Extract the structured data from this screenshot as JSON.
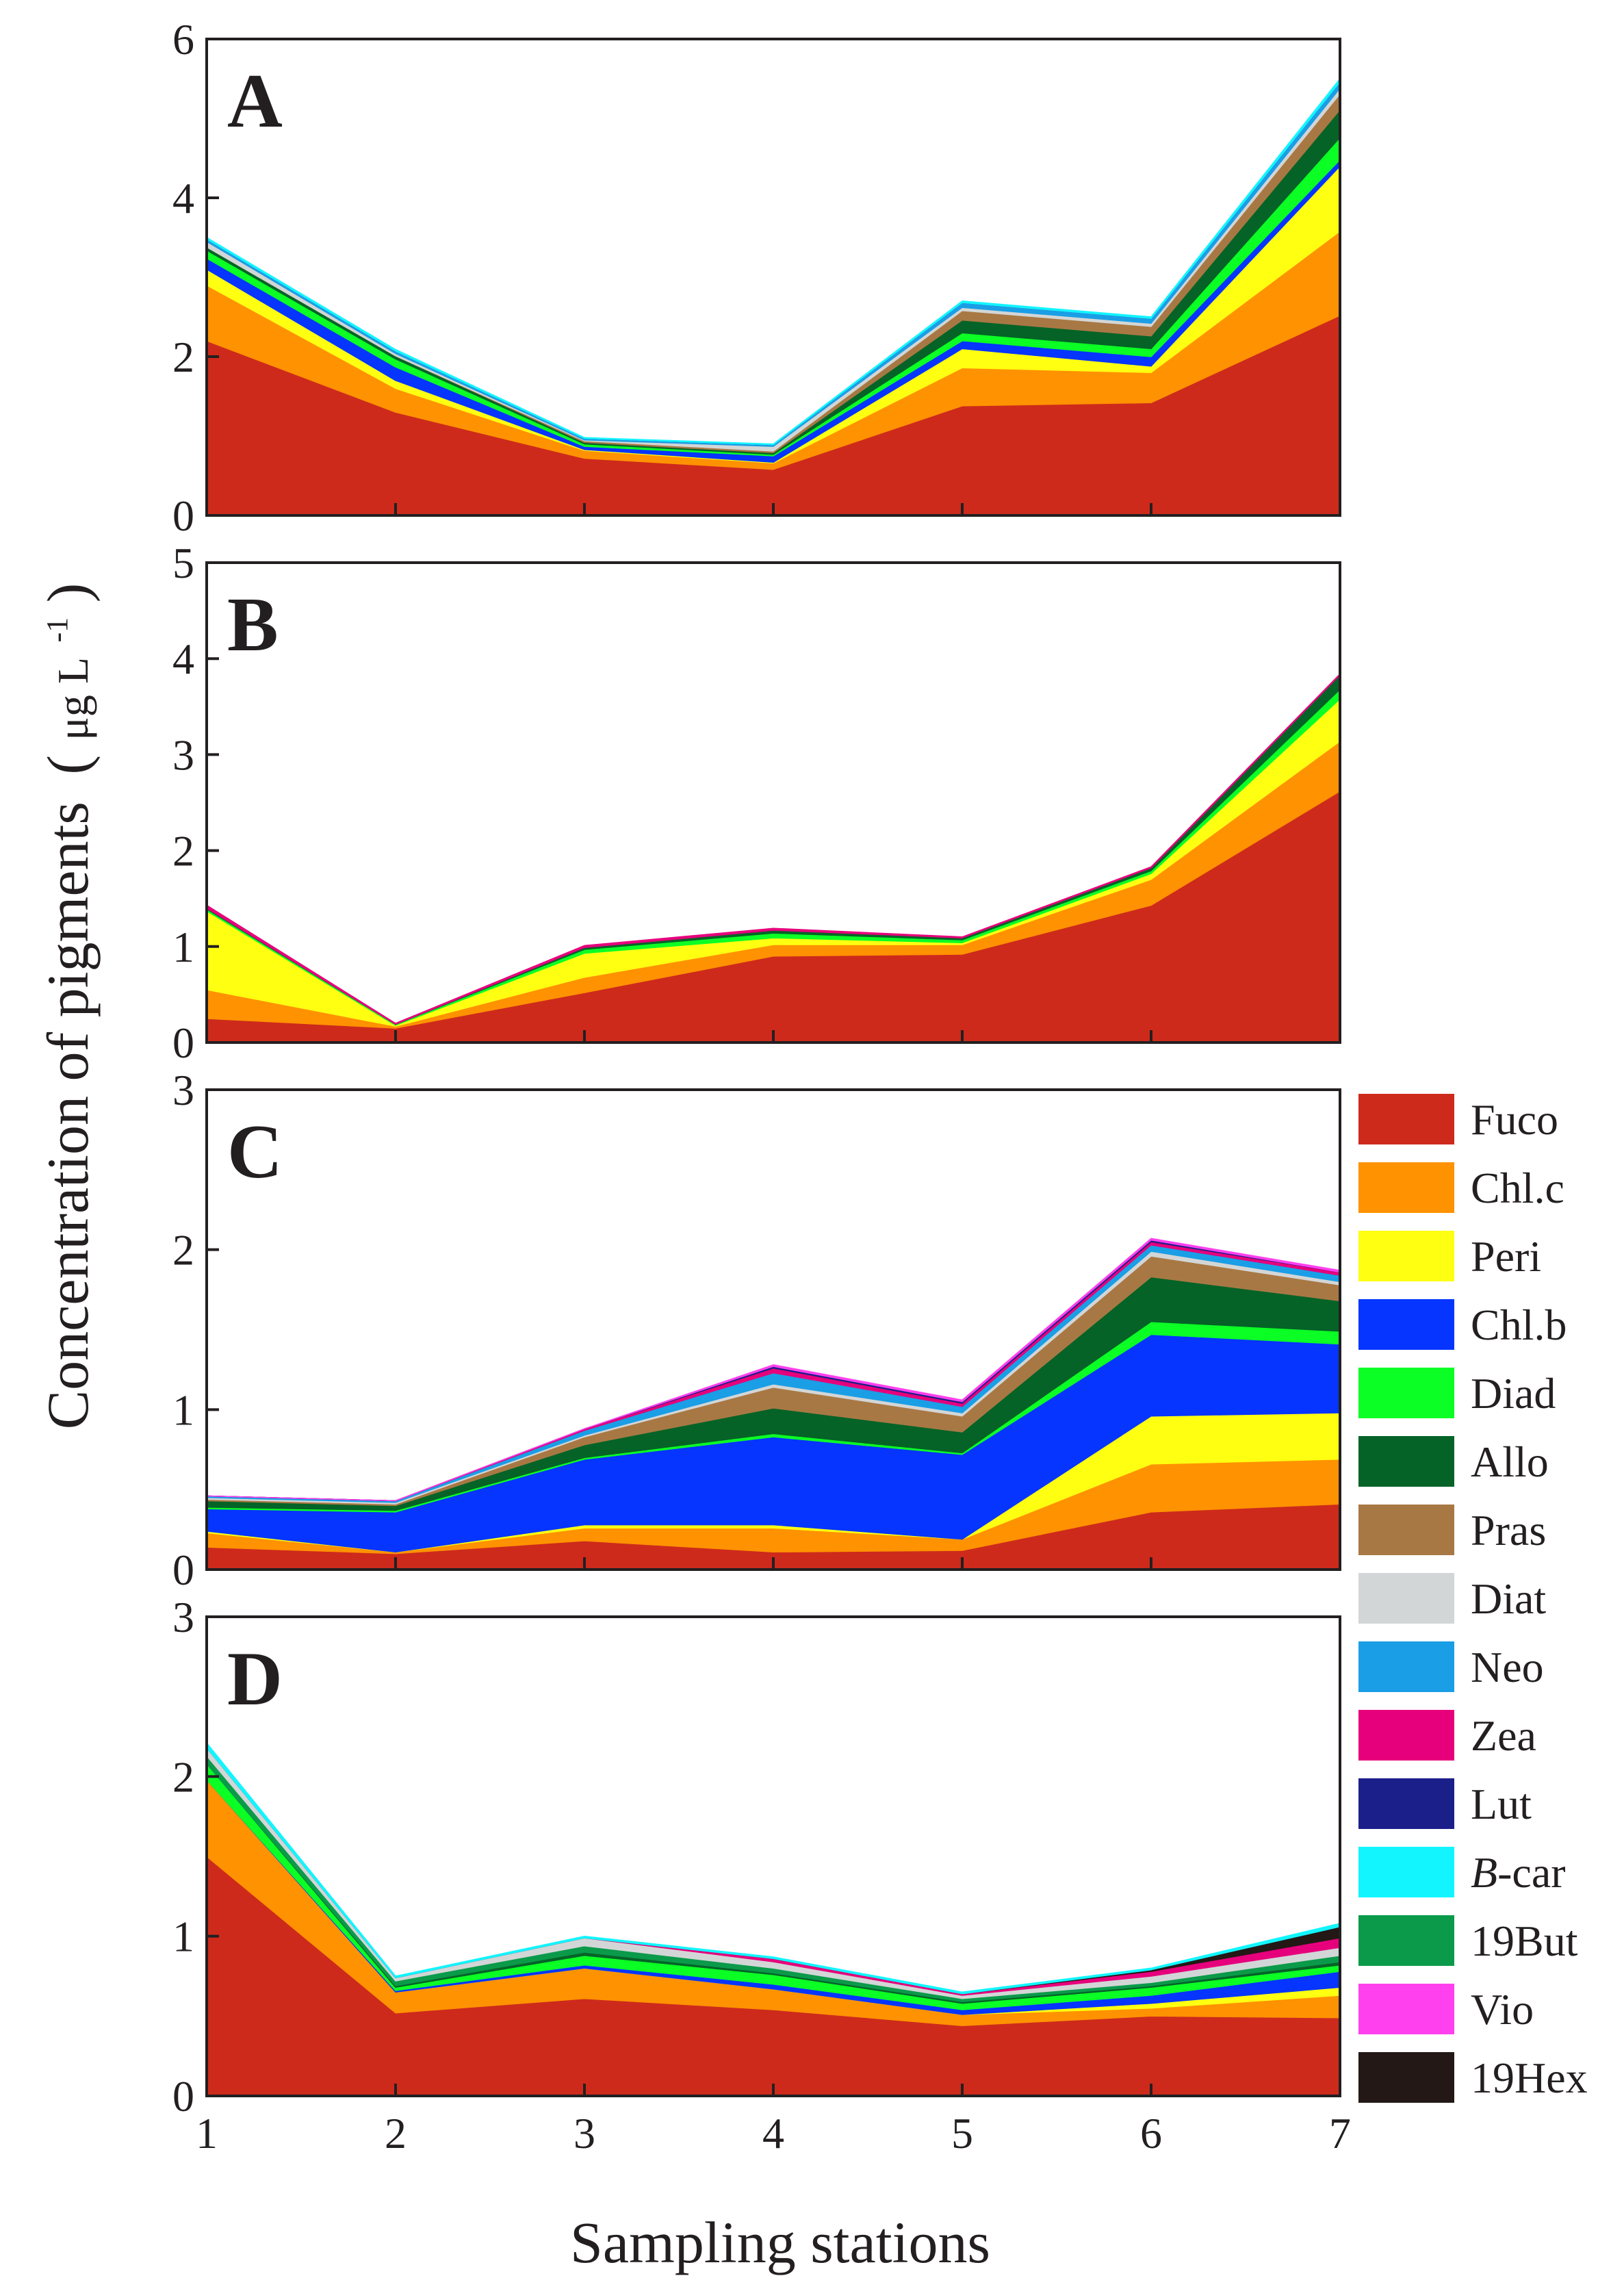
{
  "figure": {
    "xlabel": "Sampling stations",
    "ylabel_main": "Concentration of pigments",
    "ylabel_unit_open": "(",
    "ylabel_unit_mu": "μg L",
    "ylabel_unit_exp": "-1",
    "ylabel_unit_close": ")"
  },
  "legend": [
    {
      "key": "Fuco",
      "label": "Fuco",
      "color": "#cd2a1c"
    },
    {
      "key": "Chl.c",
      "label": "Chl.c",
      "color": "#ff9200"
    },
    {
      "key": "Peri",
      "label": "Peri",
      "color": "#ffff12"
    },
    {
      "key": "Chl.b",
      "label": "Chl.b",
      "color": "#0535ff"
    },
    {
      "key": "Diad",
      "label": "Diad",
      "color": "#0bff25"
    },
    {
      "key": "Allo",
      "label": "Allo",
      "color": "#056327"
    },
    {
      "key": "Pras",
      "label": "Pras",
      "color": "#a87844"
    },
    {
      "key": "Diat",
      "label": "Diat",
      "color": "#d3d6d6"
    },
    {
      "key": "Neo",
      "label": "Neo",
      "color": "#1a9ee6"
    },
    {
      "key": "Zea",
      "label": "Zea",
      "color": "#e6007c"
    },
    {
      "key": "Lut",
      "label": "Lut",
      "color": "#1b1f8a"
    },
    {
      "key": "B-car",
      "label_prefix": "B",
      "label": "-car",
      "color": "#12f5ff"
    },
    {
      "key": "19But",
      "label": "19But",
      "color": "#0a9a4a"
    },
    {
      "key": "Vio",
      "label": "Vio",
      "color": "#ff40ee"
    },
    {
      "key": "19Hex",
      "label": "19Hex",
      "color": "#231815"
    }
  ],
  "chart_data": [
    {
      "type": "area",
      "stacked": true,
      "panel": "A",
      "x": [
        1,
        2,
        3,
        4,
        5,
        6,
        7
      ],
      "xlabel": "Sampling stations",
      "ylabel": "Concentration of pigments (μg L-1)",
      "ylim": [
        0,
        6
      ],
      "yticks": [
        0,
        2,
        4,
        6
      ],
      "series": [
        {
          "name": "Fuco",
          "values": [
            2.2,
            1.3,
            0.72,
            0.58,
            1.38,
            1.42,
            2.52
          ]
        },
        {
          "name": "Chl.c",
          "values": [
            0.7,
            0.3,
            0.1,
            0.08,
            0.48,
            0.38,
            1.06
          ]
        },
        {
          "name": "Peri",
          "values": [
            0.2,
            0.1,
            0.01,
            0.01,
            0.24,
            0.08,
            0.82
          ]
        },
        {
          "name": "Chl.b",
          "values": [
            0.14,
            0.17,
            0.04,
            0.08,
            0.1,
            0.12,
            0.08
          ]
        },
        {
          "name": "Diad",
          "values": [
            0.1,
            0.1,
            0.03,
            0.02,
            0.1,
            0.1,
            0.28
          ]
        },
        {
          "name": "Allo",
          "values": [
            0.04,
            0.04,
            0.02,
            0.02,
            0.16,
            0.16,
            0.35
          ]
        },
        {
          "name": "Pras",
          "values": [
            0.0,
            0.0,
            0.02,
            0.02,
            0.12,
            0.12,
            0.2
          ]
        },
        {
          "name": "Diat",
          "values": [
            0.07,
            0.03,
            0.01,
            0.06,
            0.04,
            0.04,
            0.07
          ]
        },
        {
          "name": "Neo",
          "values": [
            0.03,
            0.03,
            0.02,
            0.02,
            0.06,
            0.06,
            0.08
          ]
        },
        {
          "name": "Zea",
          "values": [
            0.0,
            0.0,
            0.0,
            0.0,
            0.0,
            0.0,
            0.0
          ]
        },
        {
          "name": "Lut",
          "values": [
            0.0,
            0.0,
            0.0,
            0.0,
            0.0,
            0.0,
            0.0
          ]
        },
        {
          "name": "B-car",
          "values": [
            0.02,
            0.02,
            0.01,
            0.01,
            0.02,
            0.02,
            0.04
          ]
        }
      ]
    },
    {
      "type": "area",
      "stacked": true,
      "panel": "B",
      "x": [
        1,
        2,
        3,
        4,
        5,
        6,
        7
      ],
      "ylim": [
        0,
        5
      ],
      "yticks": [
        0,
        1,
        2,
        3,
        4,
        5
      ],
      "series": [
        {
          "name": "Fuco",
          "values": [
            0.25,
            0.15,
            0.52,
            0.9,
            0.92,
            1.43,
            2.62
          ]
        },
        {
          "name": "Chl.c",
          "values": [
            0.3,
            0.02,
            0.16,
            0.12,
            0.1,
            0.27,
            0.52
          ]
        },
        {
          "name": "Peri",
          "values": [
            0.82,
            0.01,
            0.25,
            0.07,
            0.02,
            0.06,
            0.44
          ]
        },
        {
          "name": "Diad",
          "values": [
            0.02,
            0.01,
            0.04,
            0.05,
            0.03,
            0.03,
            0.1
          ]
        },
        {
          "name": "Allo",
          "values": [
            0.01,
            0.0,
            0.02,
            0.03,
            0.02,
            0.03,
            0.15
          ]
        },
        {
          "name": "Zea",
          "values": [
            0.03,
            0.01,
            0.02,
            0.02,
            0.01,
            0.01,
            0.01
          ]
        }
      ]
    },
    {
      "type": "area",
      "stacked": true,
      "panel": "C",
      "x": [
        1,
        2,
        3,
        4,
        5,
        6,
        7
      ],
      "ylim": [
        0,
        3
      ],
      "yticks": [
        0,
        1,
        2,
        3
      ],
      "series": [
        {
          "name": "Fuco",
          "values": [
            0.14,
            0.1,
            0.18,
            0.11,
            0.12,
            0.36,
            0.41
          ]
        },
        {
          "name": "Chl.c",
          "values": [
            0.09,
            0.01,
            0.08,
            0.15,
            0.07,
            0.3,
            0.28
          ]
        },
        {
          "name": "Peri",
          "values": [
            0.01,
            0.0,
            0.02,
            0.02,
            0.0,
            0.3,
            0.29
          ]
        },
        {
          "name": "Chl.b",
          "values": [
            0.14,
            0.25,
            0.41,
            0.55,
            0.53,
            0.51,
            0.43
          ]
        },
        {
          "name": "Diad",
          "values": [
            0.01,
            0.01,
            0.01,
            0.02,
            0.01,
            0.08,
            0.08
          ]
        },
        {
          "name": "Allo",
          "values": [
            0.04,
            0.03,
            0.08,
            0.16,
            0.13,
            0.28,
            0.19
          ]
        },
        {
          "name": "Pras",
          "values": [
            0.01,
            0.01,
            0.05,
            0.13,
            0.1,
            0.13,
            0.1
          ]
        },
        {
          "name": "Diat",
          "values": [
            0.01,
            0.01,
            0.01,
            0.02,
            0.02,
            0.03,
            0.02
          ]
        },
        {
          "name": "Neo",
          "values": [
            0.01,
            0.01,
            0.03,
            0.07,
            0.04,
            0.04,
            0.04
          ]
        },
        {
          "name": "Zea",
          "values": [
            0.0,
            0.0,
            0.01,
            0.03,
            0.02,
            0.02,
            0.02
          ]
        },
        {
          "name": "Lut",
          "values": [
            0.0,
            0.0,
            0.0,
            0.01,
            0.01,
            0.01,
            0.0
          ]
        },
        {
          "name": "Vio",
          "values": [
            0.0,
            0.0,
            0.0,
            0.01,
            0.01,
            0.01,
            0.01
          ]
        }
      ]
    },
    {
      "type": "area",
      "stacked": true,
      "panel": "D",
      "x": [
        1,
        2,
        3,
        4,
        5,
        6,
        7
      ],
      "ylim": [
        0,
        3
      ],
      "yticks": [
        0,
        1,
        2,
        3
      ],
      "series": [
        {
          "name": "Fuco",
          "values": [
            1.5,
            0.52,
            0.61,
            0.54,
            0.44,
            0.5,
            0.49
          ]
        },
        {
          "name": "Chl.c",
          "values": [
            0.48,
            0.13,
            0.19,
            0.13,
            0.07,
            0.05,
            0.14
          ]
        },
        {
          "name": "Peri",
          "values": [
            0.0,
            0.0,
            0.0,
            0.0,
            0.0,
            0.03,
            0.05
          ]
        },
        {
          "name": "Chl.b",
          "values": [
            0.0,
            0.01,
            0.02,
            0.03,
            0.03,
            0.05,
            0.1
          ]
        },
        {
          "name": "Diad",
          "values": [
            0.1,
            0.02,
            0.06,
            0.06,
            0.04,
            0.05,
            0.04
          ]
        },
        {
          "name": "Allo",
          "values": [
            0.0,
            0.01,
            0.02,
            0.01,
            0.01,
            0.01,
            0.02
          ]
        },
        {
          "name": "19But",
          "values": [
            0.05,
            0.03,
            0.04,
            0.03,
            0.02,
            0.02,
            0.04
          ]
        },
        {
          "name": "Diat",
          "values": [
            0.05,
            0.02,
            0.05,
            0.04,
            0.02,
            0.04,
            0.05
          ]
        },
        {
          "name": "Zea",
          "values": [
            0.0,
            0.0,
            0.0,
            0.02,
            0.01,
            0.03,
            0.06
          ]
        },
        {
          "name": "19Hex",
          "values": [
            0.0,
            0.0,
            0.0,
            0.0,
            0.0,
            0.01,
            0.07
          ]
        },
        {
          "name": "B-car",
          "values": [
            0.03,
            0.01,
            0.01,
            0.01,
            0.01,
            0.01,
            0.02
          ]
        }
      ]
    }
  ]
}
